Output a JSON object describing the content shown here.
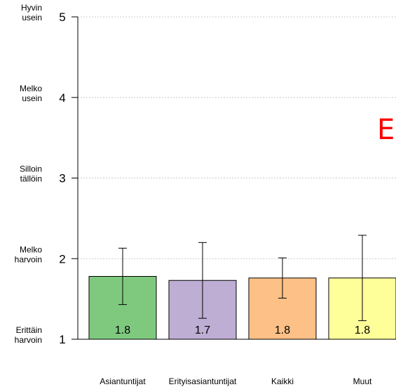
{
  "chart_data": {
    "type": "bar",
    "categories": [
      "Asiantuntijat",
      "Erityisasiantuntijat",
      "Kaikki",
      "Muut"
    ],
    "values": [
      1.78,
      1.73,
      1.76,
      1.76
    ],
    "value_labels": [
      "1.8",
      "1.7",
      "1.8",
      "1.8"
    ],
    "error_low": [
      1.43,
      1.26,
      1.51,
      1.23
    ],
    "error_high": [
      2.13,
      2.2,
      2.01,
      2.29
    ],
    "colors": [
      "#7fc97f",
      "#beaed4",
      "#fdc086",
      "#ffff99"
    ],
    "ylim": [
      1,
      5
    ],
    "yticks": [
      1,
      2,
      3,
      4,
      5
    ],
    "ytick_labels": [
      [
        "Erittäin",
        "harvoin"
      ],
      [
        "Melko",
        "harvoin"
      ],
      [
        "Silloin",
        "tällöin"
      ],
      [
        "Melko",
        "usein"
      ],
      [
        "Hyvin",
        "usein"
      ]
    ],
    "grid": true,
    "xlabel": "",
    "ylabel": ""
  },
  "watermark": {
    "text": "Es",
    "color": "#ff0000"
  }
}
